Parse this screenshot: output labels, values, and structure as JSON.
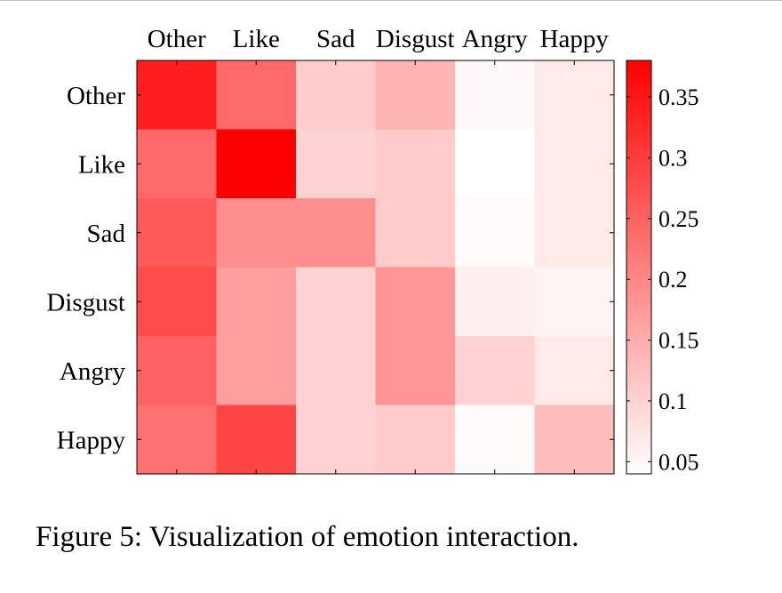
{
  "caption": "Figure 5: Visualization of emotion interaction.",
  "chart_data": {
    "type": "heatmap",
    "x_categories": [
      "Other",
      "Like",
      "Sad",
      "Disgust",
      "Angry",
      "Happy"
    ],
    "y_categories": [
      "Other",
      "Like",
      "Sad",
      "Disgust",
      "Angry",
      "Happy"
    ],
    "x_axis_position": "top",
    "values": [
      [
        0.34,
        0.24,
        0.11,
        0.14,
        0.05,
        0.07
      ],
      [
        0.24,
        0.38,
        0.1,
        0.11,
        0.04,
        0.07
      ],
      [
        0.26,
        0.19,
        0.19,
        0.11,
        0.045,
        0.07
      ],
      [
        0.28,
        0.17,
        0.1,
        0.18,
        0.06,
        0.055
      ],
      [
        0.25,
        0.17,
        0.1,
        0.18,
        0.1,
        0.07
      ],
      [
        0.23,
        0.29,
        0.1,
        0.11,
        0.045,
        0.13
      ]
    ],
    "colorbar": {
      "range": [
        0.04,
        0.38
      ],
      "ticks": [
        "0.05",
        "0.1",
        "0.15",
        "0.2",
        "0.25",
        "0.3",
        "0.35"
      ],
      "colormap": [
        "#ffffff",
        "#ff0000"
      ],
      "position": "right"
    }
  }
}
